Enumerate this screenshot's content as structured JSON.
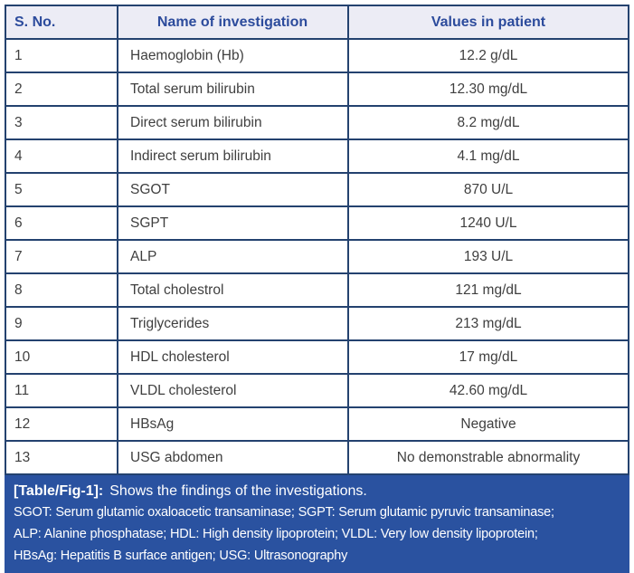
{
  "table": {
    "headers": [
      "S. No.",
      "Name of investigation",
      "Values in patient"
    ],
    "rows": [
      {
        "sno": "1",
        "name": "Haemoglobin (Hb)",
        "value": "12.2 g/dL"
      },
      {
        "sno": "2",
        "name": "Total serum bilirubin",
        "value": "12.30 mg/dL"
      },
      {
        "sno": "3",
        "name": "Direct serum bilirubin",
        "value": "8.2 mg/dL"
      },
      {
        "sno": "4",
        "name": "Indirect serum bilirubin",
        "value": "4.1 mg/dL"
      },
      {
        "sno": "5",
        "name": "SGOT",
        "value": "870 U/L"
      },
      {
        "sno": "6",
        "name": "SGPT",
        "value": "1240 U/L"
      },
      {
        "sno": "7",
        "name": "ALP",
        "value": "193 U/L"
      },
      {
        "sno": "8",
        "name": "Total cholestrol",
        "value": "121 mg/dL"
      },
      {
        "sno": "9",
        "name": "Triglycerides",
        "value": "213 mg/dL"
      },
      {
        "sno": "10",
        "name": "HDL cholesterol",
        "value": "17 mg/dL"
      },
      {
        "sno": "11",
        "name": "VLDL cholesterol",
        "value": "42.60 mg/dL"
      },
      {
        "sno": "12",
        "name": "HBsAg",
        "value": "Negative"
      },
      {
        "sno": "13",
        "name": "USG abdomen",
        "value": "No demonstrable abnormality"
      }
    ]
  },
  "caption": {
    "label": "[Table/Fig-1]:",
    "text": "Shows the findings of the investigations.",
    "footnotes": [
      "SGOT: Serum glutamic oxaloacetic transaminase; SGPT: Serum glutamic pyruvic transaminase;",
      "ALP: Alanine phosphatase; HDL: High density lipoprotein; VLDL: Very low density lipoprotein;",
      "HBsAg: Hepatitis B surface antigen; USG: Ultrasonography"
    ]
  },
  "colors": {
    "border": "#24426f",
    "header_bg": "#ececf5",
    "header_text": "#2c4b9c",
    "body_text": "#3f3f3f",
    "caption_bg": "#2a52a0",
    "caption_text": "#ffffff"
  }
}
